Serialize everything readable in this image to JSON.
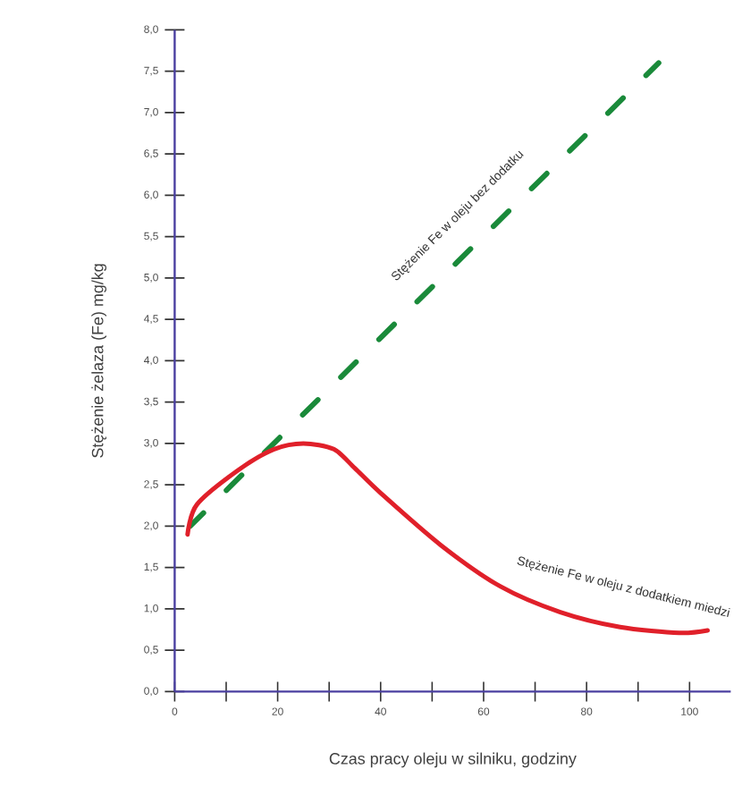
{
  "chart_data": {
    "type": "line",
    "xlabel": "Czas pracy oleju w silniku, godziny",
    "ylabel": "Stężenie żelaza (Fe) mg/kg",
    "xlim": [
      0,
      108
    ],
    "ylim": [
      0,
      8
    ],
    "xticks": [
      0,
      {
        "value": 10,
        "label": null
      },
      20,
      {
        "value": 30,
        "label": null
      },
      40,
      {
        "value": 50,
        "label": null
      },
      60,
      {
        "value": 70,
        "label": null
      },
      80,
      {
        "value": 90,
        "label": null
      },
      100
    ],
    "yticks": [
      {
        "value": 0,
        "label": "0,0"
      },
      {
        "value": 0.5,
        "label": "0,5"
      },
      {
        "value": 1,
        "label": "1,0"
      },
      {
        "value": 1.5,
        "label": "1,5"
      },
      {
        "value": 2,
        "label": "2,0"
      },
      {
        "value": 2.5,
        "label": "2,5"
      },
      {
        "value": 3,
        "label": "3,0"
      },
      {
        "value": 3.5,
        "label": "3,5"
      },
      {
        "value": 4,
        "label": "4,0"
      },
      {
        "value": 4.5,
        "label": "4,5"
      },
      {
        "value": 5,
        "label": "5,0"
      },
      {
        "value": 5.5,
        "label": "5,5"
      },
      {
        "value": 6,
        "label": "6,0"
      },
      {
        "value": 6.5,
        "label": "6,5"
      },
      {
        "value": 7,
        "label": "7,0"
      },
      {
        "value": 7.5,
        "label": "7,5"
      },
      {
        "value": 8,
        "label": "8,0"
      }
    ],
    "grid": false,
    "legend": false,
    "series": [
      {
        "name": "Stężenie Fe w oleju bez dodatku",
        "color": "#1a8a3a",
        "line_style": "dashed",
        "x": [
          3,
          94
        ],
        "values": [
          2.0,
          7.6
        ]
      },
      {
        "name": "Stężenie Fe w oleju z dodatkiem miedzi",
        "color": "#e0202a",
        "line_style": "solid",
        "x": [
          2.5,
          4.3,
          12.4,
          19.3,
          25,
          30.9,
          35,
          40,
          51.7,
          63.3,
          74.9,
          86.5,
          98,
          103.5
        ],
        "values": [
          1.9,
          2.26,
          2.68,
          2.93,
          3.0,
          2.93,
          2.7,
          2.4,
          1.77,
          1.27,
          0.96,
          0.78,
          0.71,
          0.74
        ]
      }
    ]
  }
}
